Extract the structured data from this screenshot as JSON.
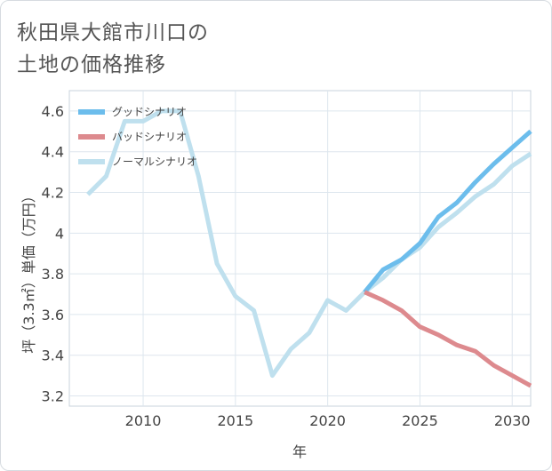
{
  "page": {
    "title_line1": "秋田県大館市川口の",
    "title_line2": "土地の価格推移"
  },
  "chart_data": {
    "type": "line",
    "title": "秋田県大館市川口の土地の価格推移",
    "xlabel": "年",
    "ylabel": "坪（3.3㎡）単価（万円）",
    "xlim": [
      2006,
      2031
    ],
    "ylim": [
      3.15,
      4.7
    ],
    "x_ticks": [
      2010,
      2015,
      2020,
      2025,
      2030
    ],
    "y_ticks": [
      3.2,
      3.4,
      3.6,
      3.8,
      4,
      4.2,
      4.4,
      4.6
    ],
    "grid": true,
    "legend_position": "top-left",
    "series": [
      {
        "name": "グッドシナリオ",
        "color": "#6cbdec",
        "x": [
          2022,
          2023,
          2024,
          2025,
          2026,
          2027,
          2028,
          2029,
          2030,
          2031
        ],
        "values": [
          3.71,
          3.82,
          3.87,
          3.95,
          4.08,
          4.15,
          4.25,
          4.34,
          4.42,
          4.5
        ]
      },
      {
        "name": "バッドシナリオ",
        "color": "#dd8a8e",
        "x": [
          2022,
          2023,
          2024,
          2025,
          2026,
          2027,
          2028,
          2029,
          2030,
          2031
        ],
        "values": [
          3.71,
          3.67,
          3.62,
          3.54,
          3.5,
          3.45,
          3.42,
          3.35,
          3.3,
          3.25
        ]
      },
      {
        "name": "ノーマルシナリオ",
        "color": "#bfe0ee",
        "x": [
          2007,
          2008,
          2009,
          2010,
          2011,
          2012,
          2013,
          2014,
          2015,
          2016,
          2017,
          2018,
          2019,
          2020,
          2021,
          2022,
          2023,
          2024,
          2025,
          2026,
          2027,
          2028,
          2029,
          2030,
          2031
        ],
        "values": [
          4.19,
          4.28,
          4.55,
          4.55,
          4.6,
          4.6,
          4.28,
          3.85,
          3.69,
          3.62,
          3.3,
          3.43,
          3.51,
          3.67,
          3.62,
          3.71,
          3.78,
          3.87,
          3.93,
          4.03,
          4.1,
          4.18,
          4.24,
          4.33,
          4.39
        ]
      }
    ]
  }
}
